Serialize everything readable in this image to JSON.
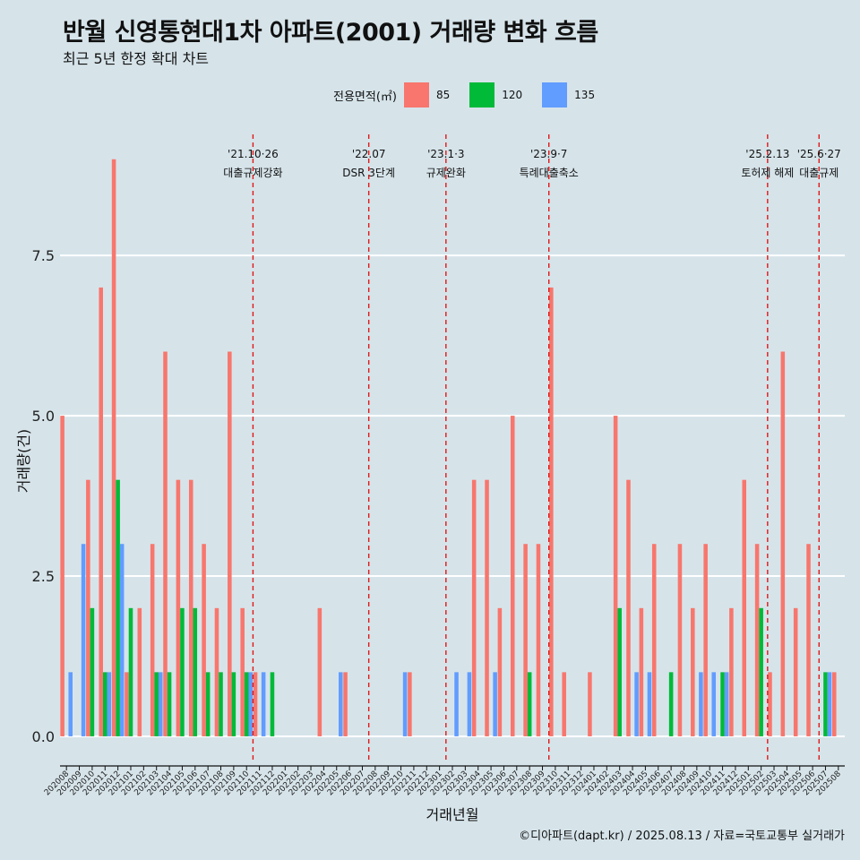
{
  "header": {
    "title": "반월 신영통현대1차 아파트(2001) 거래량 변화 흐름",
    "subtitle": "최근 5년 한정 확대 차트"
  },
  "legend": {
    "title": "전용면적(㎡)",
    "items": [
      {
        "label": "85",
        "color": "#f8766d"
      },
      {
        "label": "120",
        "color": "#00ba38"
      },
      {
        "label": "135",
        "color": "#619cff"
      }
    ]
  },
  "source": "©디아파트(dapt.kr) / 2025.08.13 / 자료=국토교통부 실거래가",
  "chart_data": {
    "type": "bar",
    "xlabel": "거래년월",
    "ylabel": "거래량(건)",
    "ylim": [
      -0.35,
      9.5
    ],
    "yticks": [
      0,
      2.5,
      5,
      7.5
    ],
    "ytick_labels": [
      "0.0",
      "2.5",
      "5.0",
      "7.5"
    ],
    "grid": "horizontal",
    "legend_position": "top",
    "categories": [
      "202008",
      "202009",
      "202010",
      "202011",
      "202012",
      "202101",
      "202102",
      "202103",
      "202104",
      "202105",
      "202106",
      "202107",
      "202108",
      "202109",
      "202110",
      "202111",
      "202112",
      "202201",
      "202202",
      "202203",
      "202204",
      "202205",
      "202206",
      "202207",
      "202208",
      "202209",
      "202210",
      "202211",
      "202212",
      "202301",
      "202302",
      "202303",
      "202304",
      "202305",
      "202306",
      "202307",
      "202308",
      "202309",
      "202310",
      "202311",
      "202312",
      "202401",
      "202402",
      "202403",
      "202404",
      "202405",
      "202406",
      "202407",
      "202408",
      "202409",
      "202410",
      "202411",
      "202412",
      "202501",
      "202502",
      "202503",
      "202504",
      "202505",
      "202506",
      "202507",
      "202508"
    ],
    "series": [
      {
        "name": "85",
        "color": "#f8766d",
        "values": [
          5,
          0,
          4,
          7,
          9,
          1,
          2,
          3,
          6,
          4,
          4,
          3,
          2,
          6,
          2,
          1,
          0,
          0,
          0,
          0,
          2,
          0,
          1,
          0,
          0,
          0,
          0,
          1,
          0,
          0,
          0,
          0,
          4,
          4,
          2,
          5,
          3,
          3,
          7,
          1,
          0,
          1,
          0,
          5,
          4,
          2,
          3,
          0,
          3,
          2,
          3,
          0,
          2,
          4,
          3,
          1,
          6,
          2,
          3,
          0,
          1
        ]
      },
      {
        "name": "120",
        "color": "#00ba38",
        "values": [
          0,
          0,
          2,
          1,
          4,
          2,
          0,
          1,
          1,
          2,
          2,
          1,
          1,
          1,
          1,
          0,
          1,
          0,
          0,
          0,
          0,
          0,
          0,
          0,
          0,
          0,
          0,
          0,
          0,
          0,
          0,
          0,
          0,
          0,
          0,
          0,
          1,
          0,
          0,
          0,
          0,
          0,
          0,
          2,
          0,
          0,
          0,
          1,
          0,
          0,
          0,
          1,
          0,
          0,
          2,
          0,
          0,
          0,
          0,
          1,
          0
        ]
      },
      {
        "name": "135",
        "color": "#619cff",
        "values": [
          1,
          3,
          0,
          1,
          3,
          0,
          0,
          1,
          0,
          0,
          0,
          0,
          0,
          0,
          1,
          1,
          0,
          0,
          0,
          0,
          0,
          1,
          0,
          0,
          0,
          0,
          1,
          0,
          0,
          0,
          1,
          1,
          0,
          1,
          0,
          0,
          0,
          0,
          0,
          0,
          0,
          0,
          0,
          0,
          1,
          1,
          0,
          0,
          0,
          1,
          1,
          1,
          0,
          0,
          0,
          0,
          0,
          0,
          0,
          1,
          0
        ]
      }
    ],
    "annotations": [
      {
        "date_lines": [
          "'21.10·26",
          "대출규제강화"
        ],
        "after_category": "202110"
      },
      {
        "date_lines": [
          "'22.07",
          "DSR 3단계"
        ],
        "after_category": "202207"
      },
      {
        "date_lines": [
          "'23.1·3",
          "규제완화"
        ],
        "after_category": "202301"
      },
      {
        "date_lines": [
          "'23.9·7",
          "특례대출축소"
        ],
        "after_category": "202309"
      },
      {
        "date_lines": [
          "'25.2.13",
          "토허제 해제"
        ],
        "after_category": "202502"
      },
      {
        "date_lines": [
          "'25.6·27",
          "대출규제"
        ],
        "after_category": "202506"
      }
    ]
  }
}
